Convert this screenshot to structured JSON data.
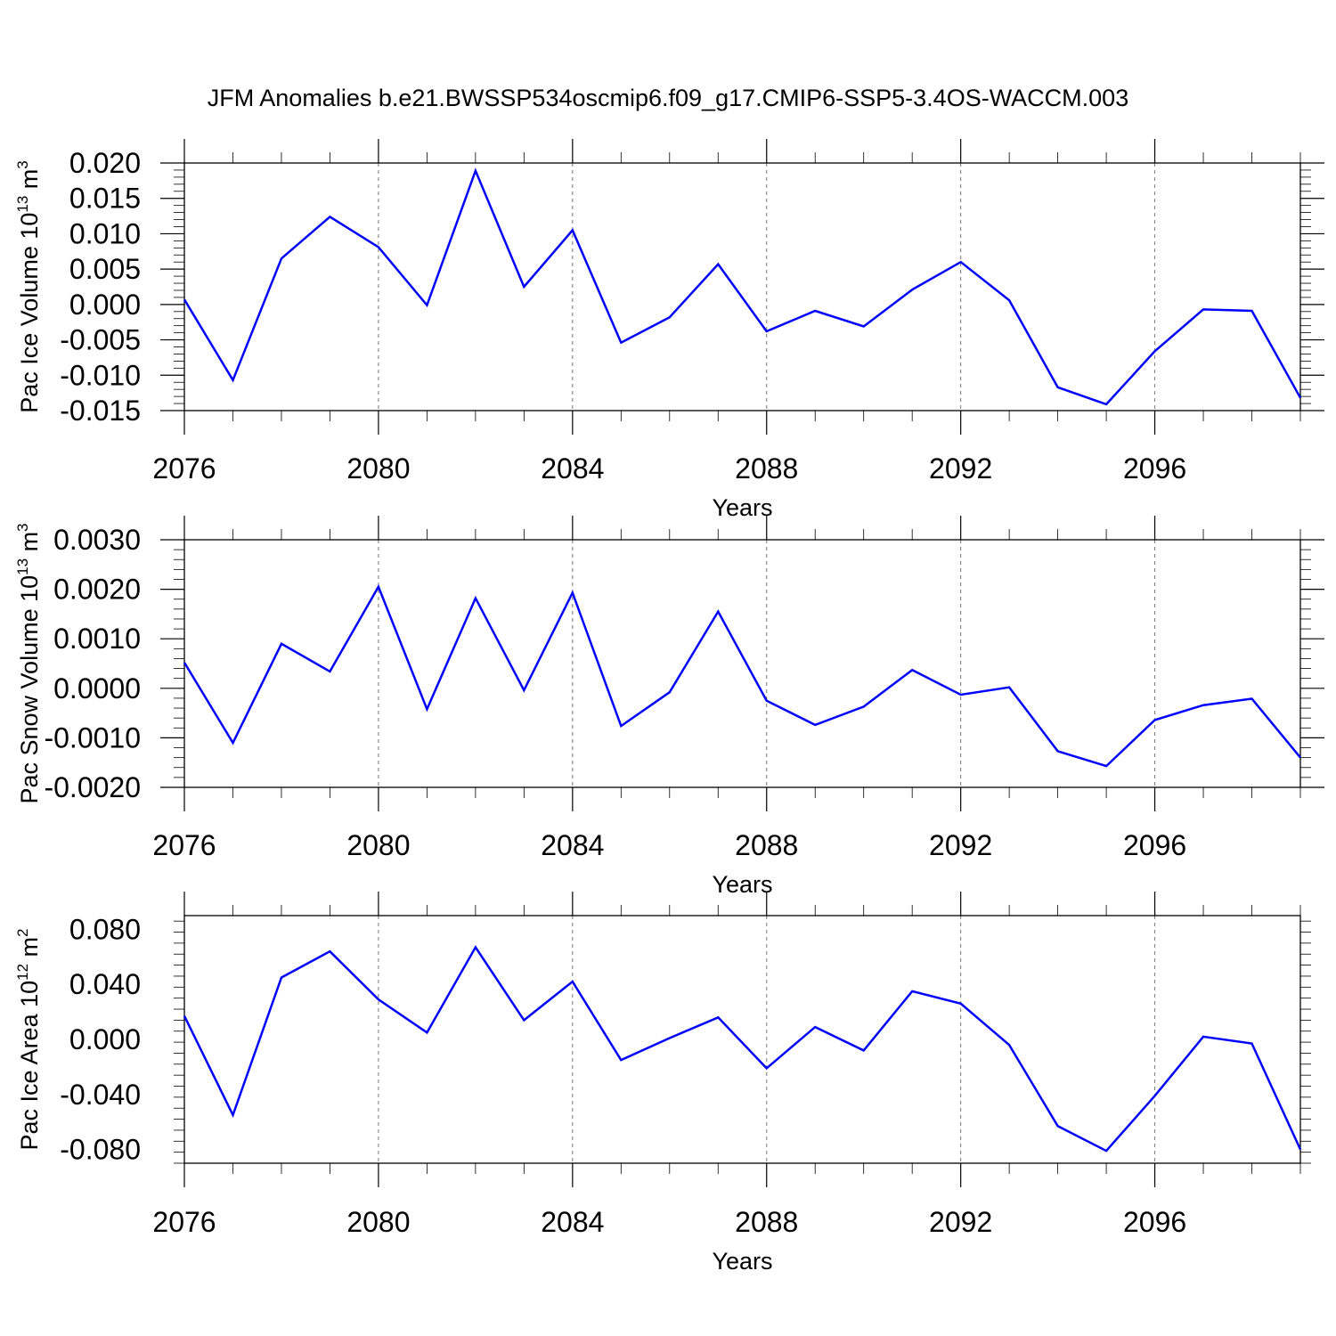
{
  "title": "JFM Anomalies b.e21.BWSSP534oscmip6.f09_g17.CMIP6-SSP5-3.4OS-WACCM.003",
  "chart_data": [
    {
      "type": "line",
      "ylabel": "Pac Ice Volume 10",
      "ylabel_exp": "13",
      "ylabel_unit": " m",
      "ylabel_unit_exp": "3",
      "xlabel": "Years",
      "x": [
        2076,
        2077,
        2078,
        2079,
        2080,
        2081,
        2082,
        2083,
        2084,
        2085,
        2086,
        2087,
        2088,
        2089,
        2090,
        2091,
        2092,
        2093,
        2094,
        2095,
        2096,
        2097,
        2098,
        2099
      ],
      "series": [
        {
          "values": [
            0.0007,
            -0.0107,
            0.0065,
            0.0124,
            0.0081,
            -0.0001,
            0.0189,
            0.0025,
            0.0105,
            -0.0054,
            -0.0018,
            0.0057,
            -0.0038,
            -0.0009,
            -0.0031,
            0.0021,
            0.006,
            0.0006,
            -0.0117,
            -0.0141,
            -0.0066,
            -0.0007,
            -0.0009,
            -0.0132
          ]
        }
      ],
      "xlim": [
        2076,
        2099
      ],
      "ylim": [
        -0.015,
        0.02
      ],
      "xticks": [
        "2076",
        "2080",
        "2084",
        "2088",
        "2092",
        "2096"
      ],
      "yticks": [
        "0.020",
        "0.015",
        "0.010",
        "0.005",
        "0.000",
        "-0.005",
        "-0.010",
        "-0.015"
      ],
      "grid": "vertical dashed at labeled years",
      "legend": "none"
    },
    {
      "type": "line",
      "ylabel": "Pac Snow Volume 10",
      "ylabel_exp": "13",
      "ylabel_unit": " m",
      "ylabel_unit_exp": "3",
      "xlabel": "Years",
      "x": [
        2076,
        2077,
        2078,
        2079,
        2080,
        2081,
        2082,
        2083,
        2084,
        2085,
        2086,
        2087,
        2088,
        2089,
        2090,
        2091,
        2092,
        2093,
        2094,
        2095,
        2096,
        2097,
        2098,
        2099
      ],
      "series": [
        {
          "values": [
            0.00052,
            -0.0011,
            0.0009,
            0.00034,
            0.00205,
            -0.00042,
            0.00182,
            -4e-05,
            0.00193,
            -0.00076,
            -8e-05,
            0.00155,
            -0.00025,
            -0.00074,
            -0.00037,
            0.00037,
            -0.00013,
            2e-05,
            -0.00127,
            -0.00157,
            -0.00064,
            -0.00034,
            -0.00021,
            -0.0014
          ]
        }
      ],
      "xlim": [
        2076,
        2099
      ],
      "ylim": [
        -0.002,
        0.003
      ],
      "xticks": [
        "2076",
        "2080",
        "2084",
        "2088",
        "2092",
        "2096"
      ],
      "yticks": [
        "0.0030",
        "0.0020",
        "0.0010",
        "0.0000",
        "-0.0010",
        "-0.0020"
      ],
      "grid": "vertical dashed at labeled years",
      "legend": "none"
    },
    {
      "type": "line",
      "ylabel": "Pac Ice Area 10",
      "ylabel_exp": "12",
      "ylabel_unit": " m",
      "ylabel_unit_exp": "2",
      "xlabel": "Years",
      "x": [
        2076,
        2077,
        2078,
        2079,
        2080,
        2081,
        2082,
        2083,
        2084,
        2085,
        2086,
        2087,
        2088,
        2089,
        2090,
        2091,
        2092,
        2093,
        2094,
        2095,
        2096,
        2097,
        2098,
        2099
      ],
      "series": [
        {
          "values": [
            0.017,
            -0.055,
            0.045,
            0.064,
            0.029,
            0.005,
            0.067,
            0.014,
            0.042,
            -0.015,
            0.001,
            0.016,
            -0.021,
            0.009,
            -0.008,
            0.035,
            0.026,
            -0.004,
            -0.063,
            -0.081,
            -0.041,
            0.002,
            -0.003,
            -0.08
          ]
        }
      ],
      "xlim": [
        2076,
        2099
      ],
      "ylim": [
        -0.09,
        0.09
      ],
      "xticks": [
        "2076",
        "2080",
        "2084",
        "2088",
        "2092",
        "2096"
      ],
      "yticks": [
        "0.080",
        "0.040",
        "0.000",
        "-0.040",
        "-0.080"
      ],
      "grid": "vertical dashed at labeled years",
      "legend": "none"
    }
  ]
}
